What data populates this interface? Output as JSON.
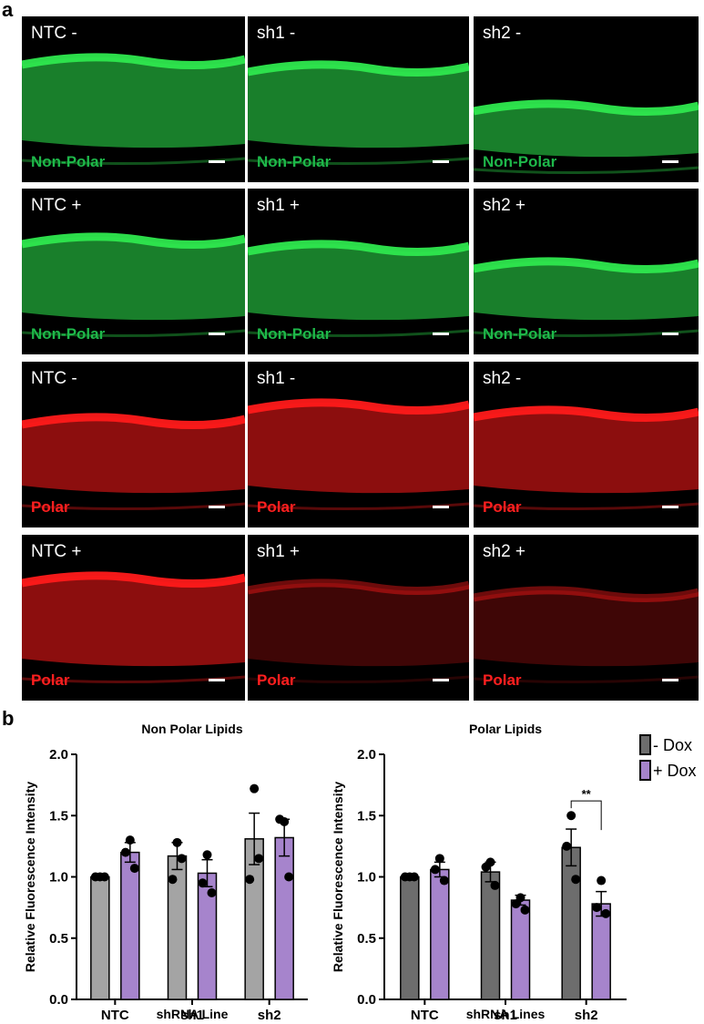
{
  "panel_a": {
    "letter": "a",
    "rows": [
      {
        "tone": "green",
        "tiles": [
          {
            "condition": "NTC -",
            "stain": "Non-Polar"
          },
          {
            "condition": "sh1 -",
            "stain": "Non-Polar"
          },
          {
            "condition": "sh2 -",
            "stain": "Non-Polar"
          }
        ]
      },
      {
        "tone": "green",
        "tiles": [
          {
            "condition": "NTC +",
            "stain": "Non-Polar"
          },
          {
            "condition": "sh1 +",
            "stain": "Non-Polar"
          },
          {
            "condition": "sh2 +",
            "stain": "Non-Polar"
          }
        ]
      },
      {
        "tone": "red",
        "tiles": [
          {
            "condition": "NTC -",
            "stain": "Polar"
          },
          {
            "condition": "sh1 -",
            "stain": "Polar"
          },
          {
            "condition": "sh2 -",
            "stain": "Polar"
          }
        ]
      },
      {
        "tone": "red",
        "tiles": [
          {
            "condition": "NTC +",
            "stain": "Polar"
          },
          {
            "condition": "sh1 +",
            "stain": "Polar"
          },
          {
            "condition": "sh2 +",
            "stain": "Polar"
          }
        ]
      }
    ],
    "colors": {
      "green": "#2ee84e",
      "red": "#ff1a1a"
    }
  },
  "panel_b": {
    "letter": "b",
    "legend": [
      {
        "label": "- Dox",
        "color": "#6d6d6d"
      },
      {
        "label": "+ Dox",
        "color": "#a684cc"
      }
    ]
  },
  "chart_data": [
    {
      "type": "bar",
      "title": "Non Polar Lipids",
      "xlabel": "shRNA Line",
      "ylabel": "Relative Fluorescence Intensity",
      "ylim": [
        0,
        2.0
      ],
      "yticks": [
        "0.0",
        "0.5",
        "1.0",
        "1.5",
        "2.0"
      ],
      "categories": [
        "NTC",
        "sh1",
        "sh2"
      ],
      "series": [
        {
          "name": "- Dox",
          "color": "#a4a4a4",
          "values": [
            1.0,
            1.17,
            1.31
          ],
          "errors": [
            0.0,
            0.11,
            0.21
          ],
          "points": [
            [
              1.0,
              1.0,
              1.0
            ],
            [
              1.28,
              0.98,
              1.15
            ],
            [
              1.72,
              0.98,
              1.15
            ]
          ]
        },
        {
          "name": "+ Dox",
          "color": "#a684cc",
          "values": [
            1.2,
            1.03,
            1.32
          ],
          "errors": [
            0.08,
            0.11,
            0.15
          ],
          "points": [
            [
              1.3,
              1.2,
              1.07
            ],
            [
              1.18,
              0.95,
              0.87
            ],
            [
              1.45,
              1.47,
              1.0
            ]
          ]
        }
      ]
    },
    {
      "type": "bar",
      "title": "Polar Lipids",
      "xlabel": "shRNA Lines",
      "ylabel": "Relative Fluorescence Intensity",
      "ylim": [
        0,
        2.0
      ],
      "yticks": [
        "0.0",
        "0.5",
        "1.0",
        "1.5",
        "2.0"
      ],
      "categories": [
        "NTC",
        "sh1",
        "sh2"
      ],
      "series": [
        {
          "name": "- Dox",
          "color": "#6d6d6d",
          "values": [
            1.0,
            1.04,
            1.24
          ],
          "errors": [
            0.0,
            0.08,
            0.15
          ],
          "points": [
            [
              1.0,
              1.0,
              1.0
            ],
            [
              1.12,
              1.08,
              0.93
            ],
            [
              1.5,
              1.25,
              0.98
            ]
          ]
        },
        {
          "name": "+ Dox",
          "color": "#a684cc",
          "values": [
            1.06,
            0.81,
            0.78
          ],
          "errors": [
            0.06,
            0.04,
            0.1
          ],
          "points": [
            [
              1.15,
              1.06,
              0.97
            ],
            [
              0.83,
              0.78,
              0.73
            ],
            [
              0.97,
              0.75,
              0.7
            ]
          ]
        }
      ],
      "annotation": {
        "text": "**",
        "category": "sh2"
      }
    }
  ]
}
